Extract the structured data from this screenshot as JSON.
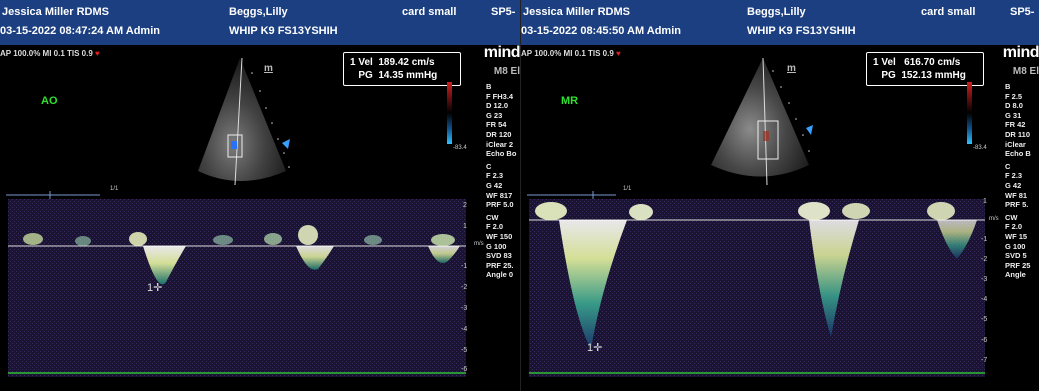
{
  "left": {
    "header": {
      "operator": "Jessica Miller RDMS",
      "patient": "Beggs,Lilly",
      "preset": "card small",
      "probe": "SP5-",
      "datetime": "03-15-2022 08:47:24 AM Admin",
      "patient_id": "WHIP K9 FS13YSHIH"
    },
    "subline": "AP 100.0%  MI 0.1  TIS 0.9",
    "logo": "mind",
    "model": "M8 El",
    "view_label": "AO",
    "mini_icon_label": "m",
    "measurement": {
      "index": "1",
      "vel_label": "Vel",
      "vel_value": "189.42 cm/s",
      "pg_label": "PG",
      "pg_value": "14.35 mmHg"
    },
    "colorbar_top": "83.4",
    "colorbar_bottom": "-83.4",
    "params": [
      "B",
      "F FH3.4",
      "D 12.0",
      "G 23",
      "FR 54",
      "DR 120",
      "iClear 2",
      "Echo Bo",
      "C",
      "F 2.3",
      "G 42",
      "WF 817",
      "PRF 5.0",
      "CW",
      "F 2.0",
      "WF 150",
      "G 100",
      "SVD 83",
      "PRF 25.",
      "Angle 0"
    ],
    "timeline_label": "1/1",
    "scale_unit": "m/s",
    "scale_ticks": [
      "2",
      "1",
      "-1",
      "-2",
      "-3",
      "-4",
      "-5",
      "-6"
    ],
    "cursor_label": "1"
  },
  "right": {
    "header": {
      "operator": "Jessica Miller RDMS",
      "patient": "Beggs,Lilly",
      "preset": "card small",
      "probe": "SP5-",
      "datetime": "03-15-2022 08:45:50 AM Admin",
      "patient_id": "WHIP K9 FS13YSHIH"
    },
    "subline": "AP 100.0%  MI 0.1  TIS 0.9",
    "logo": "mind",
    "model": "M8 El",
    "view_label": "MR",
    "mini_icon_label": "m",
    "measurement": {
      "index": "1",
      "vel_label": "Vel",
      "vel_value": "616.70 cm/s",
      "pg_label": "PG",
      "pg_value": "152.13 mmHg"
    },
    "colorbar_top": "83.4",
    "colorbar_bottom": "-83.4",
    "params": [
      "B",
      "F 2.5",
      "D 8.0",
      "G 31",
      "FR 42",
      "DR 110",
      "iClear",
      "Echo B",
      "C",
      "F 2.3",
      "G 42",
      "WF 81",
      "PRF 5.",
      "CW",
      "F 2.0",
      "WF 15",
      "G 100",
      "SVD 5",
      "PRF 25",
      "Angle"
    ],
    "timeline_label": "1/1",
    "scale_unit": "m/s",
    "scale_ticks": [
      "1",
      "-1",
      "-2",
      "-3",
      "-4",
      "-5",
      "-6",
      "-7"
    ],
    "cursor_label": "1"
  },
  "colors": {
    "header_bg": "#1b3f80",
    "view_label": "#30e030",
    "baseline": "#30e030",
    "spectral_bg": "#1c1330"
  }
}
